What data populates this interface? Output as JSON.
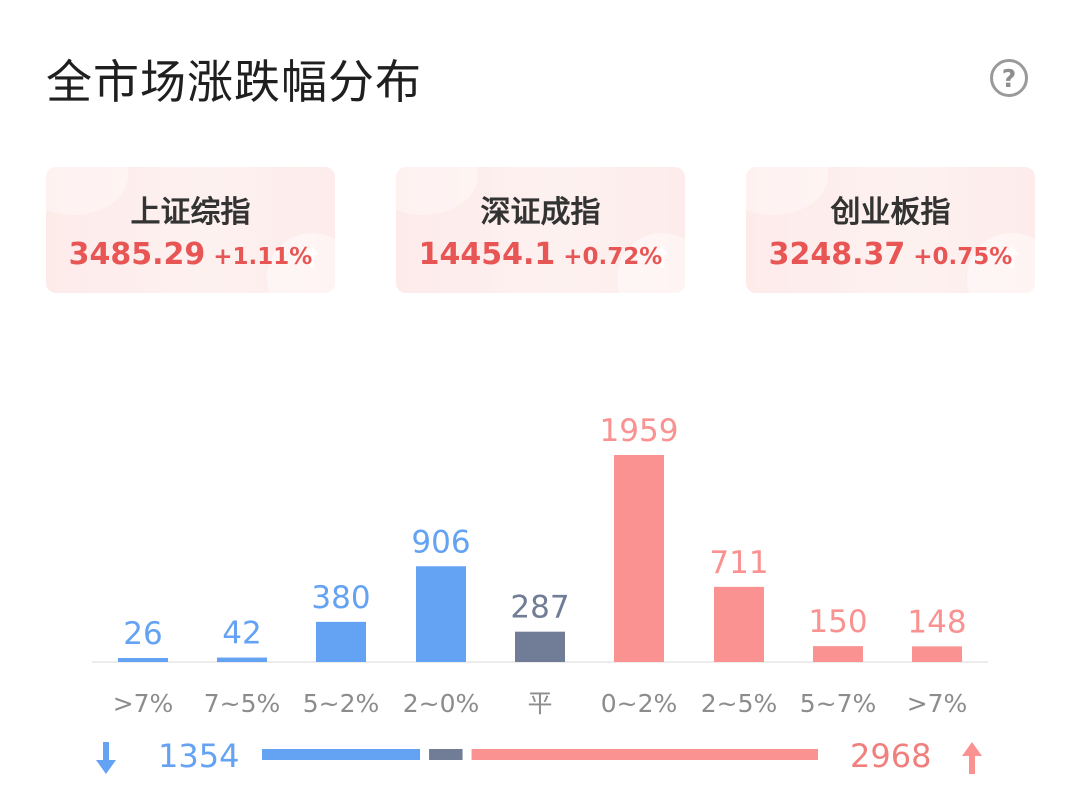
{
  "title": "全市场涨跌幅分布",
  "help_icon": "help-circle-icon",
  "help_label": "?",
  "indices": [
    {
      "name": "上证综指",
      "value": "3485.29",
      "change": "+1.11%"
    },
    {
      "name": "深证成指",
      "value": "14454.1",
      "change": "+0.72%"
    },
    {
      "name": "创业板指",
      "value": "3248.37",
      "change": "+0.75%"
    }
  ],
  "colors": {
    "down": "#64a2f4",
    "flat": "#717d96",
    "up": "#f99291",
    "up_text": "#e85555",
    "card_bg": "#fdeeed"
  },
  "chart_data": {
    "type": "bar",
    "categories": [
      ">7%",
      "7~5%",
      "5~2%",
      "2~0%",
      "平",
      "0~2%",
      "2~5%",
      "5~7%",
      ">7%"
    ],
    "values": [
      26,
      42,
      380,
      906,
      287,
      1959,
      711,
      150,
      148
    ],
    "groups": [
      "down",
      "down",
      "down",
      "down",
      "flat",
      "up",
      "up",
      "up",
      "up"
    ],
    "title": "",
    "xlabel": "",
    "ylabel": "",
    "ylim": [
      0,
      1959
    ],
    "grid": false
  },
  "summary": {
    "down_total": "1354",
    "up_total": "2968",
    "down_icon": "arrow-down-icon",
    "up_icon": "arrow-up-icon"
  }
}
